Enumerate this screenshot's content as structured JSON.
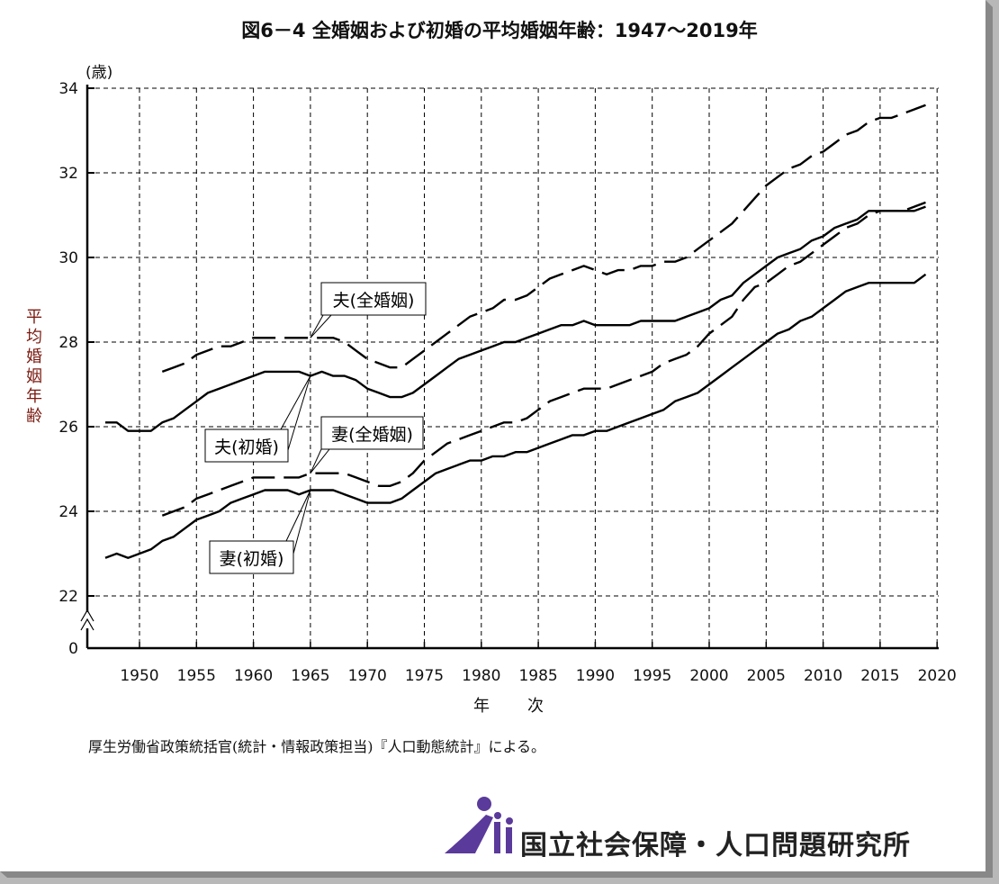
{
  "title": "図6－4 全婚姻および初婚の平均婚姻年齢：1947～2019年",
  "source": "厚生労働省政策統括官(統計・情報政策担当)『人口動態統計』による。",
  "organization": "国立社会保障・人口問題研究所",
  "colors": {
    "line": "#000000",
    "ylabel": "#7a1a10",
    "logo": "#5a3a9a",
    "grid": "#000000"
  },
  "chart_data": {
    "type": "line",
    "title": "図6－4 全婚姻および初婚の平均婚姻年齢：1947～2019年",
    "xlabel": "年　　次",
    "ylabel": "平均婚姻年齢",
    "yunit": "(歳)",
    "xlim": [
      1945.5,
      2020
    ],
    "ylim": [
      22,
      34
    ],
    "y_axis_break": true,
    "y_axis_bottom_label": "0",
    "grid": true,
    "legend": "callout labels",
    "xticks": [
      "1950",
      "1955",
      "1960",
      "1965",
      "1970",
      "1975",
      "1980",
      "1985",
      "1990",
      "1995",
      "2000",
      "2005",
      "2010",
      "2015",
      "2020"
    ],
    "yticks": [
      "22",
      "24",
      "26",
      "28",
      "30",
      "32",
      "34"
    ],
    "series": [
      {
        "name": "夫(全婚姻)",
        "style": "dashed",
        "start_year": 1952,
        "values": [
          27.3,
          27.4,
          27.5,
          27.7,
          27.8,
          27.9,
          27.9,
          28.0,
          28.1,
          28.1,
          28.1,
          28.1,
          28.1,
          28.1,
          28.1,
          28.1,
          28.0,
          27.8,
          27.6,
          27.5,
          27.4,
          27.4,
          27.6,
          27.8,
          28.0,
          28.2,
          28.4,
          28.6,
          28.7,
          28.8,
          29.0,
          29.0,
          29.1,
          29.3,
          29.5,
          29.6,
          29.7,
          29.8,
          29.7,
          29.6,
          29.7,
          29.7,
          29.8,
          29.8,
          29.9,
          29.9,
          30.0,
          30.2,
          30.4,
          30.6,
          30.8,
          31.1,
          31.4,
          31.7,
          31.9,
          32.1,
          32.2,
          32.4,
          32.5,
          32.7,
          32.9,
          33.0,
          33.2,
          33.3,
          33.3,
          33.4,
          33.5,
          33.6
        ]
      },
      {
        "name": "夫(初婚)",
        "style": "solid",
        "start_year": 1947,
        "values": [
          26.1,
          26.1,
          25.9,
          25.9,
          25.9,
          26.1,
          26.2,
          26.4,
          26.6,
          26.8,
          26.9,
          27.0,
          27.1,
          27.2,
          27.3,
          27.3,
          27.3,
          27.3,
          27.2,
          27.3,
          27.2,
          27.2,
          27.1,
          26.9,
          26.8,
          26.7,
          26.7,
          26.8,
          27.0,
          27.2,
          27.4,
          27.6,
          27.7,
          27.8,
          27.9,
          28.0,
          28.0,
          28.1,
          28.2,
          28.3,
          28.4,
          28.4,
          28.5,
          28.4,
          28.4,
          28.4,
          28.4,
          28.5,
          28.5,
          28.5,
          28.5,
          28.6,
          28.7,
          28.8,
          29.0,
          29.1,
          29.4,
          29.6,
          29.8,
          30.0,
          30.1,
          30.2,
          30.4,
          30.5,
          30.7,
          30.8,
          30.9,
          31.1,
          31.1,
          31.1,
          31.1,
          31.1,
          31.2
        ]
      },
      {
        "name": "妻(全婚姻)",
        "style": "dashed",
        "start_year": 1952,
        "values": [
          23.9,
          24.0,
          24.1,
          24.3,
          24.4,
          24.5,
          24.6,
          24.7,
          24.8,
          24.8,
          24.8,
          24.8,
          24.8,
          24.9,
          24.9,
          24.9,
          24.9,
          24.8,
          24.7,
          24.6,
          24.6,
          24.7,
          24.9,
          25.2,
          25.4,
          25.6,
          25.7,
          25.8,
          25.9,
          26.0,
          26.1,
          26.1,
          26.2,
          26.4,
          26.6,
          26.7,
          26.8,
          26.9,
          26.9,
          26.9,
          27.0,
          27.1,
          27.2,
          27.3,
          27.5,
          27.6,
          27.7,
          27.9,
          28.2,
          28.4,
          28.6,
          29.0,
          29.3,
          29.4,
          29.6,
          29.8,
          29.9,
          30.1,
          30.3,
          30.5,
          30.7,
          30.8,
          31.0,
          31.1,
          31.1,
          31.1,
          31.2,
          31.3
        ]
      },
      {
        "name": "妻(初婚)",
        "style": "solid",
        "start_year": 1947,
        "values": [
          22.9,
          23.0,
          22.9,
          23.0,
          23.1,
          23.3,
          23.4,
          23.6,
          23.8,
          23.9,
          24.0,
          24.2,
          24.3,
          24.4,
          24.5,
          24.5,
          24.5,
          24.4,
          24.5,
          24.5,
          24.5,
          24.4,
          24.3,
          24.2,
          24.2,
          24.2,
          24.3,
          24.5,
          24.7,
          24.9,
          25.0,
          25.1,
          25.2,
          25.2,
          25.3,
          25.3,
          25.4,
          25.4,
          25.5,
          25.6,
          25.7,
          25.8,
          25.8,
          25.9,
          25.9,
          26.0,
          26.1,
          26.2,
          26.3,
          26.4,
          26.6,
          26.7,
          26.8,
          27.0,
          27.2,
          27.4,
          27.6,
          27.8,
          28.0,
          28.2,
          28.3,
          28.5,
          28.6,
          28.8,
          29.0,
          29.2,
          29.3,
          29.4,
          29.4,
          29.4,
          29.4,
          29.4,
          29.6
        ]
      }
    ]
  }
}
